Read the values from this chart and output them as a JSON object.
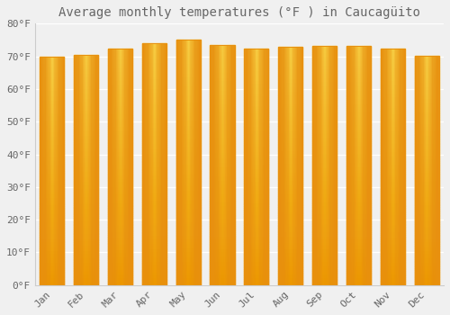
{
  "title": "Average monthly temperatures (°F ) in Caucagüito",
  "months": [
    "Jan",
    "Feb",
    "Mar",
    "Apr",
    "May",
    "Jun",
    "Jul",
    "Aug",
    "Sep",
    "Oct",
    "Nov",
    "Dec"
  ],
  "values": [
    69.8,
    70.5,
    72.3,
    74.1,
    75.0,
    73.4,
    72.5,
    73.0,
    73.2,
    73.3,
    72.3,
    70.2
  ],
  "bar_color_center": "#FFD84D",
  "bar_color_bottom": "#F5A000",
  "bar_color_edge": "#E89010",
  "background_color": "#f0f0f0",
  "grid_color": "#ffffff",
  "ylim": [
    0,
    80
  ],
  "yticks": [
    0,
    10,
    20,
    30,
    40,
    50,
    60,
    70,
    80
  ],
  "ytick_labels": [
    "0°F",
    "10°F",
    "20°F",
    "30°F",
    "40°F",
    "50°F",
    "60°F",
    "70°F",
    "80°F"
  ],
  "title_fontsize": 10,
  "tick_fontsize": 8,
  "font_color": "#666666",
  "bar_width": 0.72
}
